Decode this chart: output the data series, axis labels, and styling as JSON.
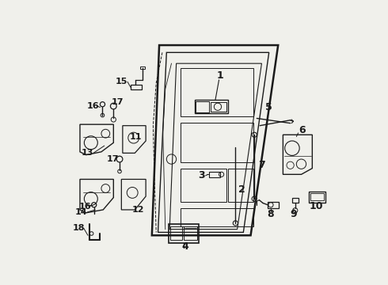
{
  "bg_color": "#f0f0eb",
  "line_color": "#1a1a1a",
  "fig_width": 4.9,
  "fig_height": 3.6,
  "dpi": 100
}
